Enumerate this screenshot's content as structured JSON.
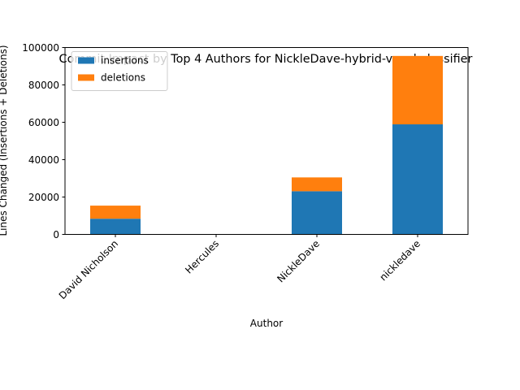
{
  "chart_data": {
    "type": "bar",
    "stacked": true,
    "title": "Commit Impact by Top 4 Authors for NickleDave-hybrid-vocal-classifier",
    "xlabel": "Author",
    "ylabel": "Lines Changed (Insertions + Deletions)",
    "categories": [
      "David Nicholson",
      "Hercules",
      "NickleDave",
      "nickledave"
    ],
    "series": [
      {
        "name": "insertions",
        "color": "#1f77b4",
        "values": [
          8400,
          60,
          23100,
          58900
        ]
      },
      {
        "name": "deletions",
        "color": "#ff7f0e",
        "values": [
          7000,
          40,
          7400,
          36600
        ]
      }
    ],
    "ylim": [
      0,
      100000
    ],
    "yticks": [
      0,
      20000,
      40000,
      60000,
      80000,
      100000
    ],
    "legend": "top-left",
    "grid": false
  }
}
